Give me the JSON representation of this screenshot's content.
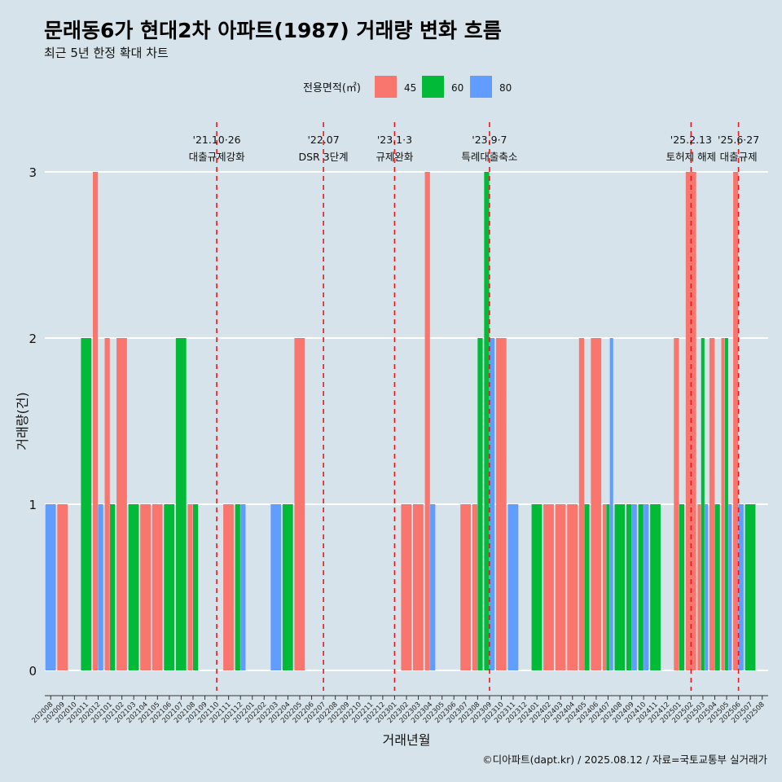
{
  "header": {
    "title": "문래동6가 현대2차 아파트(1987) 거래량 변화 흐름",
    "subtitle": "최근 5년 한정 확대 차트"
  },
  "caption": "©디아파트(dapt.kr) / 2025.08.12 / 자료=국토교통부 실거래가",
  "colors": {
    "45": "#F8766D",
    "60": "#00BA38",
    "80": "#619CFF",
    "background": "#d6e3ea",
    "event_line": "#e41a1c"
  },
  "chart_data": {
    "type": "bar",
    "title": "문래동6가 현대2차 아파트(1987) 거래량 변화 흐름",
    "subtitle": "최근 5년 한정 확대 차트",
    "xlabel": "거래년월",
    "ylabel": "거래량(건)",
    "ylim": [
      0,
      3
    ],
    "y_ticks": [
      0,
      1,
      2,
      3
    ],
    "legend": {
      "title": "전용면적(㎡)",
      "position": "top",
      "entries": [
        "45",
        "60",
        "80"
      ]
    },
    "categories": [
      "202008",
      "202009",
      "202010",
      "202011",
      "202012",
      "202101",
      "202102",
      "202103",
      "202104",
      "202105",
      "202106",
      "202107",
      "202108",
      "202109",
      "202110",
      "202111",
      "202112",
      "202201",
      "202202",
      "202203",
      "202204",
      "202205",
      "202206",
      "202207",
      "202208",
      "202209",
      "202210",
      "202211",
      "202212",
      "202301",
      "202302",
      "202303",
      "202304",
      "202305",
      "202306",
      "202307",
      "202308",
      "202309",
      "202310",
      "202311",
      "202312",
      "202401",
      "202402",
      "202403",
      "202404",
      "202405",
      "202406",
      "202407",
      "202408",
      "202409",
      "202410",
      "202411",
      "202412",
      "202501",
      "202502",
      "202503",
      "202504",
      "202505",
      "202506",
      "202507",
      "202508"
    ],
    "transactions": [
      {
        "month": "202008",
        "area": "80",
        "count": 1
      },
      {
        "month": "202009",
        "area": "45",
        "count": 1
      },
      {
        "month": "202011",
        "area": "60",
        "count": 2
      },
      {
        "month": "202012",
        "area": "45",
        "count": 3
      },
      {
        "month": "202012",
        "area": "80",
        "count": 1
      },
      {
        "month": "202101",
        "area": "45",
        "count": 2
      },
      {
        "month": "202101",
        "area": "60",
        "count": 1
      },
      {
        "month": "202102",
        "area": "45",
        "count": 2
      },
      {
        "month": "202103",
        "area": "60",
        "count": 1
      },
      {
        "month": "202104",
        "area": "45",
        "count": 1
      },
      {
        "month": "202105",
        "area": "45",
        "count": 1
      },
      {
        "month": "202106",
        "area": "60",
        "count": 1
      },
      {
        "month": "202107",
        "area": "60",
        "count": 2
      },
      {
        "month": "202108",
        "area": "45",
        "count": 1
      },
      {
        "month": "202108",
        "area": "60",
        "count": 1
      },
      {
        "month": "202111",
        "area": "45",
        "count": 1
      },
      {
        "month": "202112",
        "area": "60",
        "count": 1
      },
      {
        "month": "202112",
        "area": "80",
        "count": 1
      },
      {
        "month": "202203",
        "area": "80",
        "count": 1
      },
      {
        "month": "202204",
        "area": "60",
        "count": 1
      },
      {
        "month": "202205",
        "area": "45",
        "count": 2
      },
      {
        "month": "202302",
        "area": "45",
        "count": 1
      },
      {
        "month": "202303",
        "area": "45",
        "count": 1
      },
      {
        "month": "202304",
        "area": "45",
        "count": 3
      },
      {
        "month": "202304",
        "area": "80",
        "count": 1
      },
      {
        "month": "202307",
        "area": "45",
        "count": 1
      },
      {
        "month": "202308",
        "area": "45",
        "count": 1
      },
      {
        "month": "202308",
        "area": "60",
        "count": 2
      },
      {
        "month": "202309",
        "area": "60",
        "count": 3
      },
      {
        "month": "202309",
        "area": "80",
        "count": 2
      },
      {
        "month": "202310",
        "area": "45",
        "count": 2
      },
      {
        "month": "202311",
        "area": "80",
        "count": 1
      },
      {
        "month": "202401",
        "area": "60",
        "count": 1
      },
      {
        "month": "202402",
        "area": "45",
        "count": 1
      },
      {
        "month": "202403",
        "area": "45",
        "count": 1
      },
      {
        "month": "202404",
        "area": "45",
        "count": 1
      },
      {
        "month": "202405",
        "area": "45",
        "count": 2
      },
      {
        "month": "202405",
        "area": "60",
        "count": 1
      },
      {
        "month": "202406",
        "area": "45",
        "count": 2
      },
      {
        "month": "202407",
        "area": "45",
        "count": 1
      },
      {
        "month": "202407",
        "area": "80",
        "count": 2
      },
      {
        "month": "202407",
        "area": "60",
        "count": 1
      },
      {
        "month": "202408",
        "area": "60",
        "count": 1
      },
      {
        "month": "202409",
        "area": "80",
        "count": 1
      },
      {
        "month": "202409",
        "area": "60",
        "count": 1
      },
      {
        "month": "202410",
        "area": "80",
        "count": 1
      },
      {
        "month": "202410",
        "area": "60",
        "count": 1
      },
      {
        "month": "202411",
        "area": "60",
        "count": 1
      },
      {
        "month": "202501",
        "area": "45",
        "count": 2
      },
      {
        "month": "202501",
        "area": "60",
        "count": 1
      },
      {
        "month": "202502",
        "area": "45",
        "count": 3
      },
      {
        "month": "202503",
        "area": "60",
        "count": 2
      },
      {
        "month": "202503",
        "area": "45",
        "count": 1
      },
      {
        "month": "202503",
        "area": "80",
        "count": 1
      },
      {
        "month": "202504",
        "area": "45",
        "count": 2
      },
      {
        "month": "202504",
        "area": "60",
        "count": 1
      },
      {
        "month": "202505",
        "area": "45",
        "count": 2
      },
      {
        "month": "202505",
        "area": "60",
        "count": 2
      },
      {
        "month": "202505",
        "area": "80",
        "count": 1
      },
      {
        "month": "202506",
        "area": "45",
        "count": 3
      },
      {
        "month": "202506",
        "area": "80",
        "count": 1
      },
      {
        "month": "202507",
        "area": "60",
        "count": 1
      }
    ],
    "annotations": [
      {
        "date_label": "'21.10·26",
        "event": "대출규제강화",
        "x": "202110"
      },
      {
        "date_label": "'22.07",
        "event": "DSR 3단계",
        "x": "202207"
      },
      {
        "date_label": "'23.1·3",
        "event": "규제완화",
        "x": "202301"
      },
      {
        "date_label": "'23.9·7",
        "event": "특례대출축소",
        "x": "202309"
      },
      {
        "date_label": "'25.2.13",
        "event": "토허제 해제",
        "x": "202502"
      },
      {
        "date_label": "'25.6·27",
        "event": "대출규제",
        "x": "202506"
      }
    ],
    "grid": "horizontal"
  }
}
